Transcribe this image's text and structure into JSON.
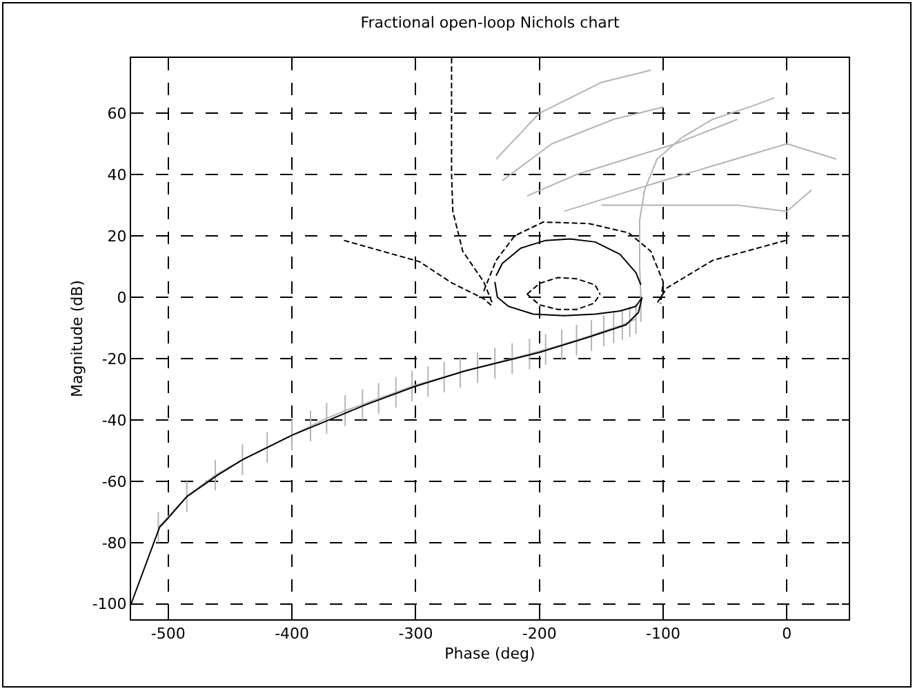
{
  "chart_data": {
    "type": "line",
    "title": "Fractional open-loop Nichols chart",
    "xlabel": "Phase (deg)",
    "ylabel": "Magnitude (dB)",
    "xlim": [
      -530,
      50
    ],
    "ylim": [
      -105,
      78
    ],
    "xticks": [
      -500,
      -400,
      -300,
      -200,
      -100,
      0
    ],
    "yticks": [
      -100,
      -80,
      -60,
      -40,
      -20,
      0,
      20,
      40,
      60
    ],
    "grid": true,
    "marker": "none",
    "line_style": "solid",
    "series": [
      {
        "color": "#b4b4b4",
        "x": [
          -508,
          -485,
          -462,
          -440,
          -420,
          -400,
          -385,
          -372,
          -357,
          -343,
          -330,
          -316,
          -303,
          -290,
          -277,
          -264,
          -250,
          -236,
          -222,
          -208,
          -195,
          -182,
          -170,
          -158,
          -148,
          -140,
          -133,
          -127,
          -122
        ],
        "values": [
          -75,
          -65,
          -58,
          -53,
          -49,
          -45,
          -42,
          -39.5,
          -37,
          -35,
          -33,
          -31,
          -29,
          -27.5,
          -26,
          -24.5,
          -23,
          -21.5,
          -20,
          -18.5,
          -17,
          -15.5,
          -14,
          -12.5,
          -11,
          -10,
          -9,
          -8,
          -7
        ],
        "errors": [
          5,
          5,
          5,
          5,
          5,
          5,
          5,
          5,
          5,
          5,
          5,
          5,
          5,
          5,
          5,
          5,
          5,
          5,
          5,
          5,
          5,
          5,
          5,
          5,
          5,
          5,
          5,
          5,
          5
        ]
      },
      {
        "color": "#b4b4b4",
        "x": [
          -118,
          -118,
          -119,
          -119,
          -115,
          -105,
          -85,
          -60,
          -30,
          -10
        ],
        "values": [
          -8,
          0,
          10,
          25,
          35,
          45,
          52,
          58,
          62,
          65
        ]
      },
      {
        "color": "#b4b4b4",
        "x": [
          -235,
          -200,
          -150,
          -110,
          null,
          -230,
          -190,
          -140,
          -100,
          null,
          -210,
          -170,
          -130,
          -90,
          -40,
          null,
          -180,
          -140,
          -100,
          -50,
          0,
          40,
          null,
          -150,
          -100,
          -40,
          0,
          20
        ],
        "values": [
          45,
          60,
          70,
          74,
          null,
          38,
          50,
          58,
          62,
          null,
          33,
          40,
          45,
          50,
          58,
          null,
          28,
          33,
          38,
          44,
          50,
          45,
          null,
          30,
          30,
          30,
          28,
          35
        ]
      },
      {
        "color": "#000000",
        "x": [
          -530,
          -507,
          -500,
          -485,
          -460,
          -440,
          -400,
          -370,
          -340,
          -300,
          -260,
          -220,
          -200,
          -160,
          -130,
          -120,
          -117
        ],
        "values": [
          -100,
          -75,
          -72,
          -65,
          -58,
          -53,
          -45,
          -40,
          -35,
          -29,
          -24,
          -20,
          -18,
          -13,
          -9,
          -5,
          0
        ]
      },
      {
        "color": "#000000",
        "x": [
          -236,
          -234,
          -225,
          -205,
          -180,
          -155,
          -135,
          -122,
          -117
        ],
        "values": [
          5,
          0,
          -3,
          -5.5,
          -6,
          -5.5,
          -4.5,
          -3,
          0
        ]
      },
      {
        "color": "#000000",
        "x": [
          -235,
          -230,
          -215,
          -195,
          -175,
          -155,
          -135,
          -122,
          -118
        ],
        "values": [
          7,
          11,
          16,
          18.5,
          19,
          18,
          14,
          8,
          4
        ]
      },
      {
        "color": "#000000",
        "line_style": "dashed",
        "x": [
          -210,
          -200,
          -185,
          -170,
          -155,
          -151
        ],
        "values": [
          1,
          4.5,
          6.4,
          6,
          4,
          1
        ]
      },
      {
        "color": "#000000",
        "line_style": "dashed",
        "x": [
          -210,
          -200,
          -185,
          -170,
          -156,
          -151
        ],
        "values": [
          1,
          -2.5,
          -4,
          -4,
          -2,
          1
        ]
      },
      {
        "color": "#000000",
        "line_style": "dashed",
        "x": [
          -358,
          -297,
          -271,
          -245,
          -238
        ],
        "values": [
          18.5,
          11.6,
          4.7,
          -0.5,
          -3
        ]
      },
      {
        "color": "#000000",
        "line_style": "dashed",
        "x": [
          -1,
          -60,
          -97,
          -105
        ],
        "values": [
          18.5,
          12,
          3,
          -2
        ]
      },
      {
        "color": "#000000",
        "line_style": "dashed",
        "x": [
          -245,
          -235,
          -220,
          -197,
          -160,
          -128,
          -110,
          -100,
          -102
        ],
        "values": [
          2,
          12,
          20,
          24.5,
          24,
          21,
          15,
          5,
          -2
        ]
      },
      {
        "color": "#000000",
        "line_style": "dashed",
        "x": [
          -271,
          -271,
          -270,
          -262,
          -245,
          -238
        ],
        "values": [
          78,
          40,
          28,
          15,
          5,
          -2
        ]
      }
    ]
  }
}
